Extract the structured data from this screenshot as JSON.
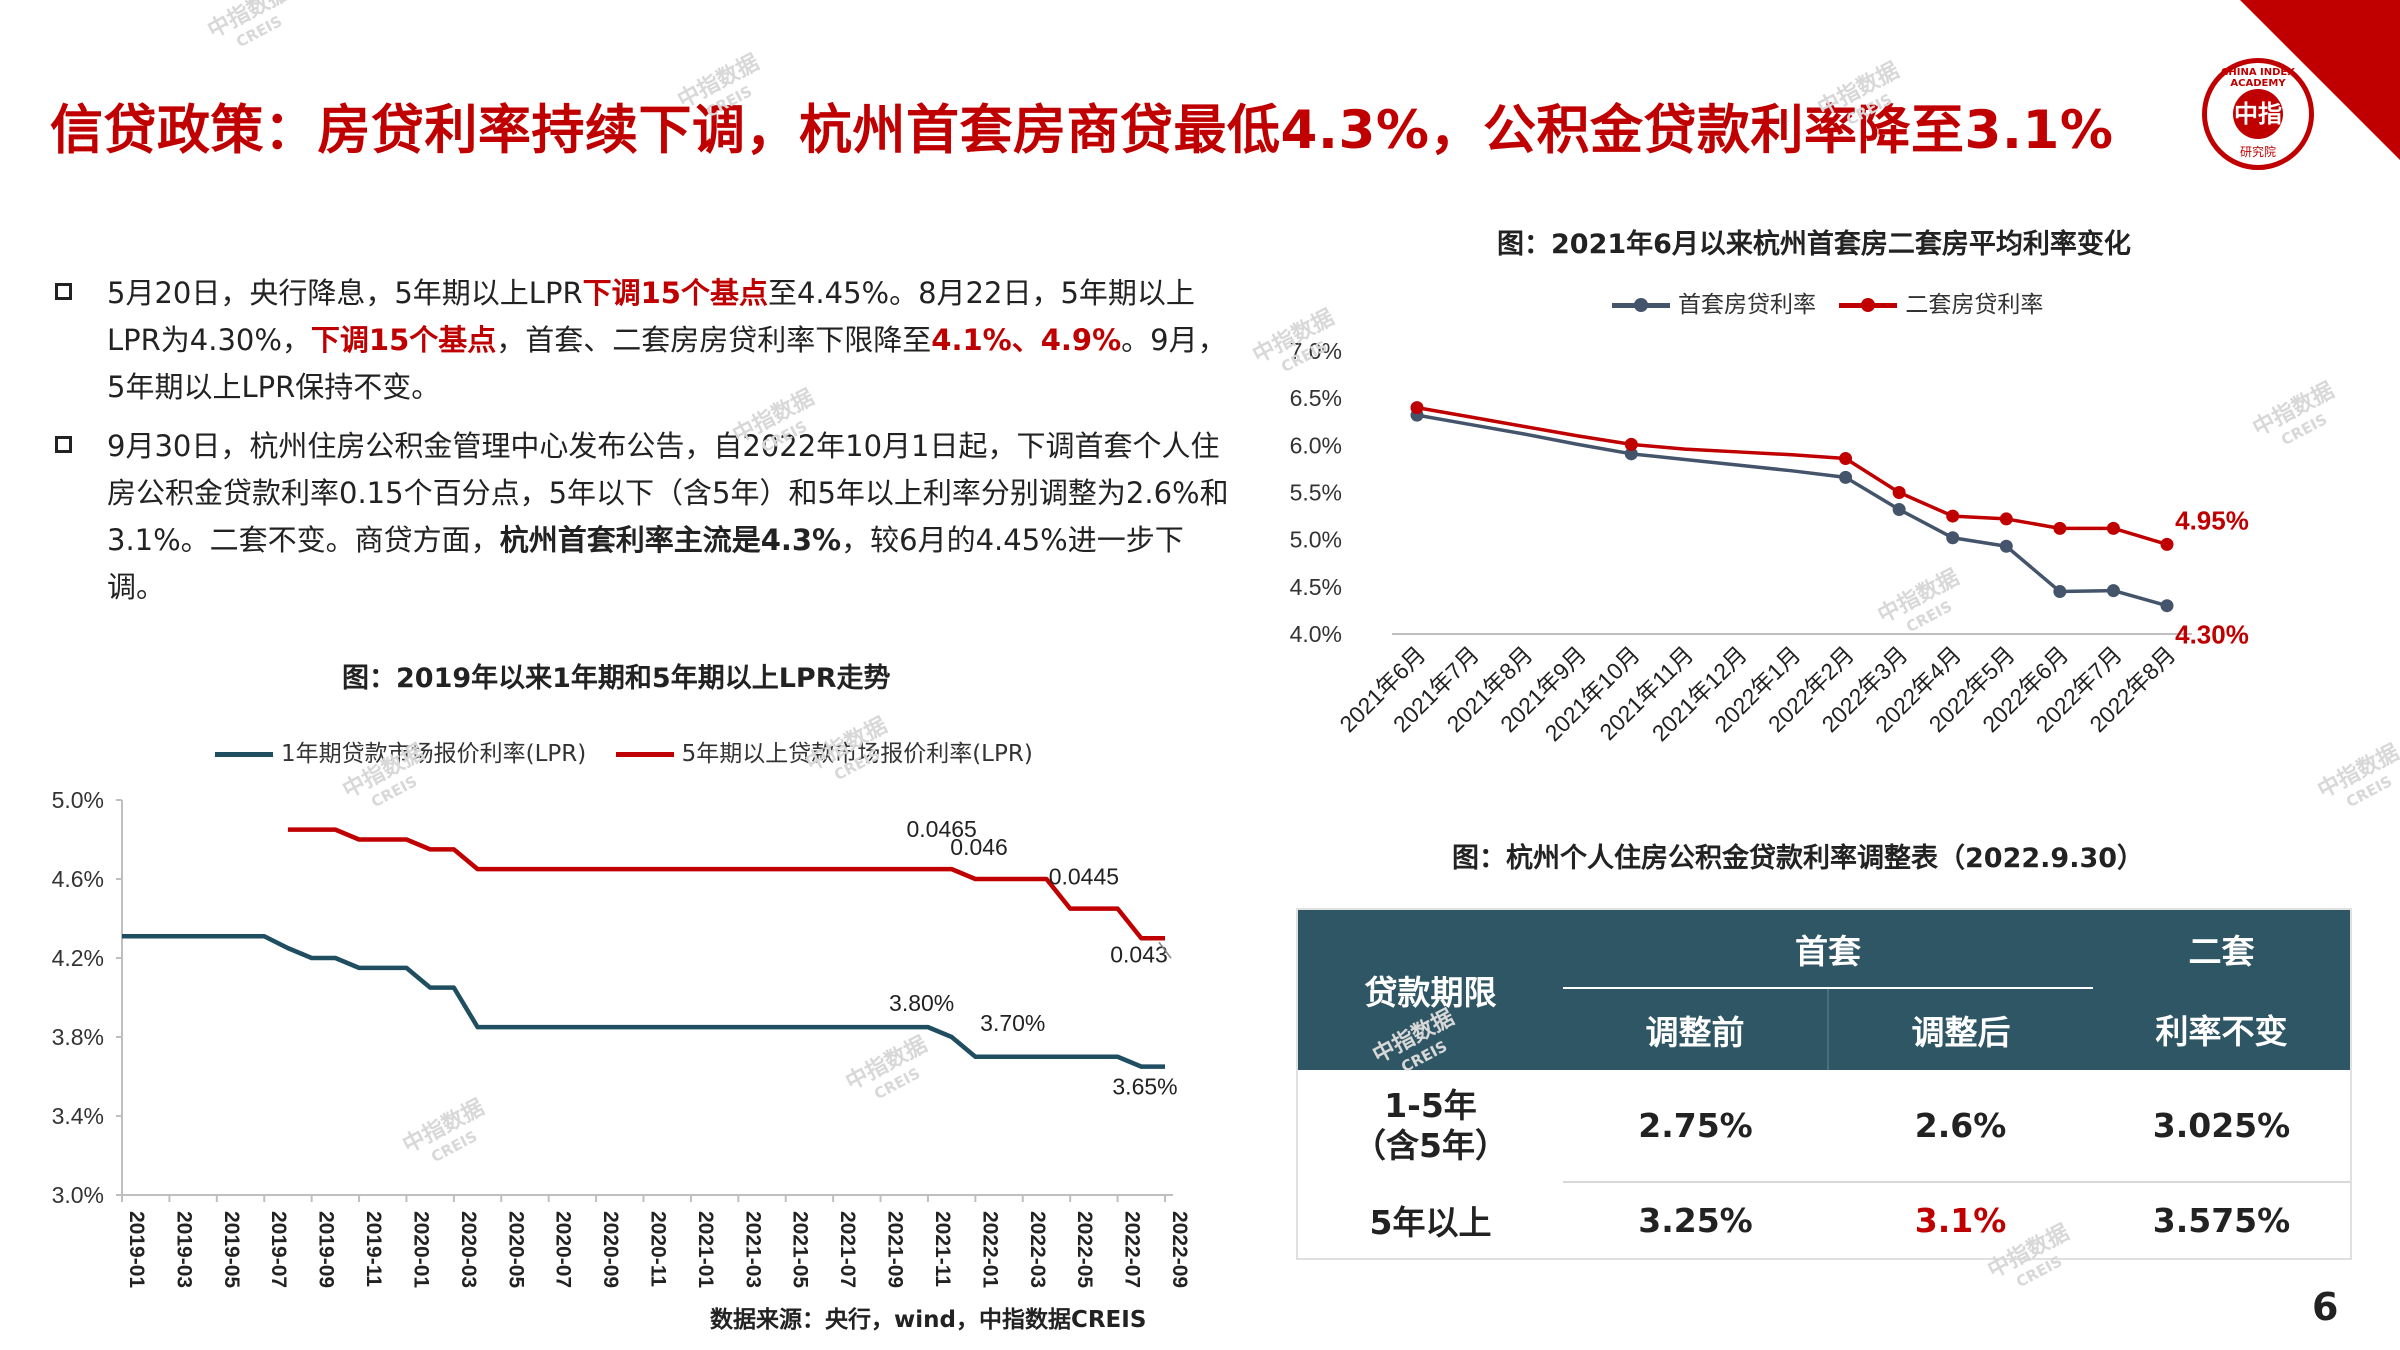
{
  "page": {
    "title": "信贷政策：房贷利率持续下调，杭州首套房商贷最低4.3%，公积金贷款利率降至3.1%",
    "page_number": "6",
    "source": "数据来源：央行，wind，中指数据CREIS",
    "logo": {
      "text": "CHINA INDEX ACADEMY",
      "mark": "中指",
      "sub": "研究院"
    },
    "watermark": {
      "main": "中指数据",
      "sub": "CREIS"
    }
  },
  "bullets": [
    {
      "parts": [
        {
          "t": "5月20日，央行降息，5年期以上LPR",
          "s": ""
        },
        {
          "t": "下调15个基点",
          "s": "hl"
        },
        {
          "t": "至4.45%。8月22日，5年期以上LPR为4.30%，",
          "s": ""
        },
        {
          "t": "下调15个基点",
          "s": "hl"
        },
        {
          "t": "，首套、二套房房贷利率下限降至",
          "s": ""
        },
        {
          "t": "4.1%、4.9%",
          "s": "hl"
        },
        {
          "t": "。9月，5年期以上LPR保持不变。",
          "s": ""
        }
      ]
    },
    {
      "parts": [
        {
          "t": "9月30日，杭州住房公积金管理中心发布公告，自2022年10月1日起，下调首套个人住房公积金贷款利率0.15个百分点，5年以下（含5年）和5年以上利率分别调整为2.6%和3.1%。二套不变。商贷方面，",
          "s": ""
        },
        {
          "t": "杭州首套利率主流是4.3%",
          "s": "bd"
        },
        {
          "t": "，较6月的4.45%进一步下调。",
          "s": ""
        }
      ]
    }
  ],
  "chart_data": [
    {
      "id": "lpr",
      "type": "line",
      "title": "图：2019年以来1年期和5年期以上LPR走势",
      "xlabel": "",
      "ylabel": "",
      "ylim": [
        3.0,
        5.0
      ],
      "yticks": [
        "3.0%",
        "3.4%",
        "3.8%",
        "4.2%",
        "4.6%",
        "5.0%"
      ],
      "ytick_values": [
        3.0,
        3.4,
        3.8,
        4.2,
        4.6,
        5.0
      ],
      "categories": [
        "2019-01",
        "2019-02",
        "2019-03",
        "2019-04",
        "2019-05",
        "2019-06",
        "2019-07",
        "2019-08",
        "2019-09",
        "2019-10",
        "2019-11",
        "2019-12",
        "2020-01",
        "2020-02",
        "2020-03",
        "2020-04",
        "2020-05",
        "2020-06",
        "2020-07",
        "2020-08",
        "2020-09",
        "2020-10",
        "2020-11",
        "2020-12",
        "2021-01",
        "2021-02",
        "2021-03",
        "2021-04",
        "2021-05",
        "2021-06",
        "2021-07",
        "2021-08",
        "2021-09",
        "2021-10",
        "2021-11",
        "2021-12",
        "2022-01",
        "2022-02",
        "2022-03",
        "2022-04",
        "2022-05",
        "2022-06",
        "2022-07",
        "2022-08",
        "2022-09"
      ],
      "tick_labels": [
        "2019-01",
        "2019-03",
        "2019-05",
        "2019-07",
        "2019-09",
        "2019-11",
        "2020-01",
        "2020-03",
        "2020-05",
        "2020-07",
        "2020-09",
        "2020-11",
        "2021-01",
        "2021-03",
        "2021-05",
        "2021-07",
        "2021-09",
        "2021-11",
        "2022-01",
        "2022-03",
        "2022-05",
        "2022-07",
        "2022-09"
      ],
      "tick_indices": [
        0,
        2,
        4,
        6,
        8,
        10,
        12,
        14,
        16,
        18,
        20,
        22,
        24,
        26,
        28,
        30,
        32,
        34,
        36,
        38,
        40,
        42,
        44
      ],
      "series": [
        {
          "name": "1年期贷款市场报价利率(LPR)",
          "color": "#1f4e61",
          "values": [
            4.31,
            4.31,
            4.31,
            4.31,
            4.31,
            4.31,
            4.31,
            4.25,
            4.2,
            4.2,
            4.15,
            4.15,
            4.15,
            4.05,
            4.05,
            3.85,
            3.85,
            3.85,
            3.85,
            3.85,
            3.85,
            3.85,
            3.85,
            3.85,
            3.85,
            3.85,
            3.85,
            3.85,
            3.85,
            3.85,
            3.85,
            3.85,
            3.85,
            3.85,
            3.85,
            3.8,
            3.7,
            3.7,
            3.7,
            3.7,
            3.7,
            3.7,
            3.7,
            3.65,
            3.65
          ]
        },
        {
          "name": "5年期以上贷款市场报价利率(LPR)",
          "color": "#c00000",
          "values": [
            null,
            null,
            null,
            null,
            null,
            null,
            null,
            4.85,
            4.85,
            4.85,
            4.8,
            4.8,
            4.8,
            4.75,
            4.75,
            4.65,
            4.65,
            4.65,
            4.65,
            4.65,
            4.65,
            4.65,
            4.65,
            4.65,
            4.65,
            4.65,
            4.65,
            4.65,
            4.65,
            4.65,
            4.65,
            4.65,
            4.65,
            4.65,
            4.65,
            4.65,
            4.6,
            4.6,
            4.6,
            4.6,
            4.45,
            4.45,
            4.45,
            4.3,
            4.3
          ]
        }
      ],
      "annotations": [
        {
          "text": "0.0465",
          "series": 1,
          "index": 35
        },
        {
          "text": "0.046",
          "series": 1,
          "index": 37
        },
        {
          "text": "0.0445",
          "series": 1,
          "index": 41
        },
        {
          "text": "0.043",
          "series": 1,
          "index": 44
        },
        {
          "text": "3.80%",
          "series": 0,
          "index": 35
        },
        {
          "text": "3.70%",
          "series": 0,
          "index": 38
        },
        {
          "text": "3.65%",
          "series": 0,
          "index": 44
        }
      ]
    },
    {
      "id": "hz",
      "type": "line",
      "title": "图：2021年6月以来杭州首套房二套房平均利率变化",
      "xlabel": "",
      "ylabel": "",
      "ylim": [
        4.0,
        7.0
      ],
      "yticks": [
        "4.0%",
        "4.5%",
        "5.0%",
        "5.5%",
        "6.0%",
        "6.5%",
        "7.0%"
      ],
      "ytick_values": [
        4.0,
        4.5,
        5.0,
        5.5,
        6.0,
        6.5,
        7.0
      ],
      "categories": [
        "2021年6月",
        "2021年7月",
        "2021年8月",
        "2021年9月",
        "2021年10月",
        "2021年11月",
        "2021年12月",
        "2022年1月",
        "2022年2月",
        "2022年3月",
        "2022年4月",
        "2022年5月",
        "2022年6月",
        "2022年7月",
        "2022年8月"
      ],
      "series": [
        {
          "name": "首套房贷利率",
          "color": "#44546a",
          "values": [
            6.32,
            6.22,
            6.12,
            6.01,
            5.91,
            5.85,
            5.79,
            5.73,
            5.66,
            5.32,
            5.02,
            4.93,
            4.45,
            4.46,
            4.3
          ]
        },
        {
          "name": "二套房贷利率",
          "color": "#c00000",
          "values": [
            6.4,
            6.3,
            6.2,
            6.1,
            6.01,
            5.96,
            5.93,
            5.9,
            5.86,
            5.5,
            5.25,
            5.22,
            5.12,
            5.12,
            4.95
          ]
        }
      ],
      "annotations": [
        {
          "text": "4.95%",
          "series": 1,
          "index": 14,
          "color": "#c00000"
        },
        {
          "text": "4.30%",
          "series": 0,
          "index": 14,
          "color": "#c00000"
        }
      ]
    },
    {
      "id": "table",
      "type": "table",
      "title": "图：杭州个人住房公积金贷款利率调整表（2022.9.30）",
      "header": {
        "period": "贷款期限",
        "first": "首套",
        "second": "二套",
        "before": "调整前",
        "after": "调整后",
        "unchanged": "利率不变"
      },
      "rows": [
        {
          "period": "1-5年",
          "period_note": "（含5年）",
          "before": "2.75%",
          "after": "2.6%",
          "second": "3.025%"
        },
        {
          "period": "5年以上",
          "period_note": "",
          "before": "3.25%",
          "after": "3.1%",
          "second": "3.575%",
          "after_color": "#c00000"
        }
      ]
    }
  ]
}
